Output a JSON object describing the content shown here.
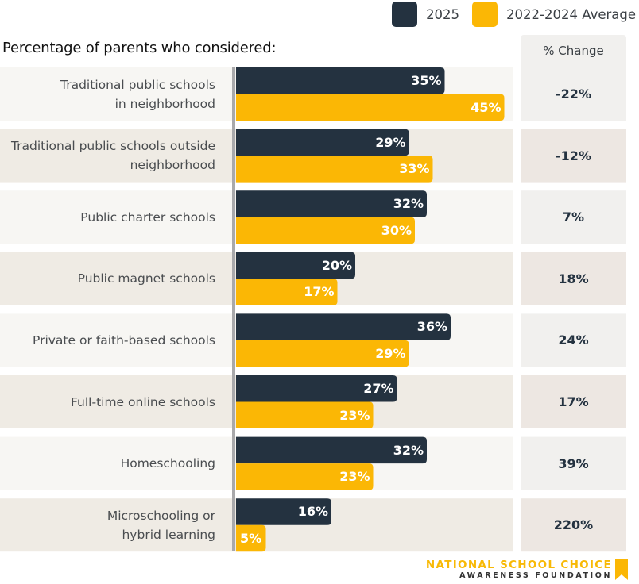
{
  "legend": {
    "series": [
      {
        "label": "2025",
        "color": "#243240"
      },
      {
        "label": "2022-2024 Average",
        "color": "#fbb705"
      }
    ]
  },
  "title": "Percentage of parents who considered:",
  "change_header": "% Change",
  "logo": {
    "line1": "NATIONAL SCHOOL CHOICE",
    "line2": "AWARENESS FOUNDATION",
    "icon": "bookmark-ribbon-icon"
  },
  "colors": {
    "row_light": "#f7f6f3",
    "row_dark": "#efebe4",
    "change_light": "#f1f0ee",
    "change_dark": "#ede7e2",
    "axis": "#a9a9ab"
  },
  "chart_data": {
    "type": "bar",
    "orientation": "horizontal",
    "title": "Percentage of parents who considered:",
    "xlabel": "",
    "ylabel": "",
    "xlim": [
      0,
      50
    ],
    "grid": false,
    "legend_position": "top-right",
    "unit": "%",
    "categories": [
      "Traditional public schools in neighborhood",
      "Traditional public schools outside neighborhood",
      "Public charter schools",
      "Public magnet schools",
      "Private or faith-based schools",
      "Full-time online schools",
      "Homeschooling",
      "Microschooling or hybrid learning"
    ],
    "category_lines": [
      [
        "Traditional public schools",
        "in neighborhood"
      ],
      [
        "Traditional public schools outside",
        "neighborhood"
      ],
      [
        "Public charter schools"
      ],
      [
        "Public magnet schools"
      ],
      [
        "Private or faith-based schools"
      ],
      [
        "Full-time online schools"
      ],
      [
        "Homeschooling"
      ],
      [
        "Microschooling or",
        "hybrid learning"
      ]
    ],
    "series": [
      {
        "name": "2025",
        "color": "#243240",
        "values": [
          35,
          29,
          32,
          20,
          36,
          27,
          32,
          16
        ]
      },
      {
        "name": "2022-2024 Average",
        "color": "#fbb705",
        "values": [
          45,
          33,
          30,
          17,
          29,
          23,
          23,
          5
        ]
      }
    ],
    "pct_change": [
      "-22%",
      "-12%",
      "7%",
      "18%",
      "24%",
      "17%",
      "39%",
      "220%"
    ]
  }
}
